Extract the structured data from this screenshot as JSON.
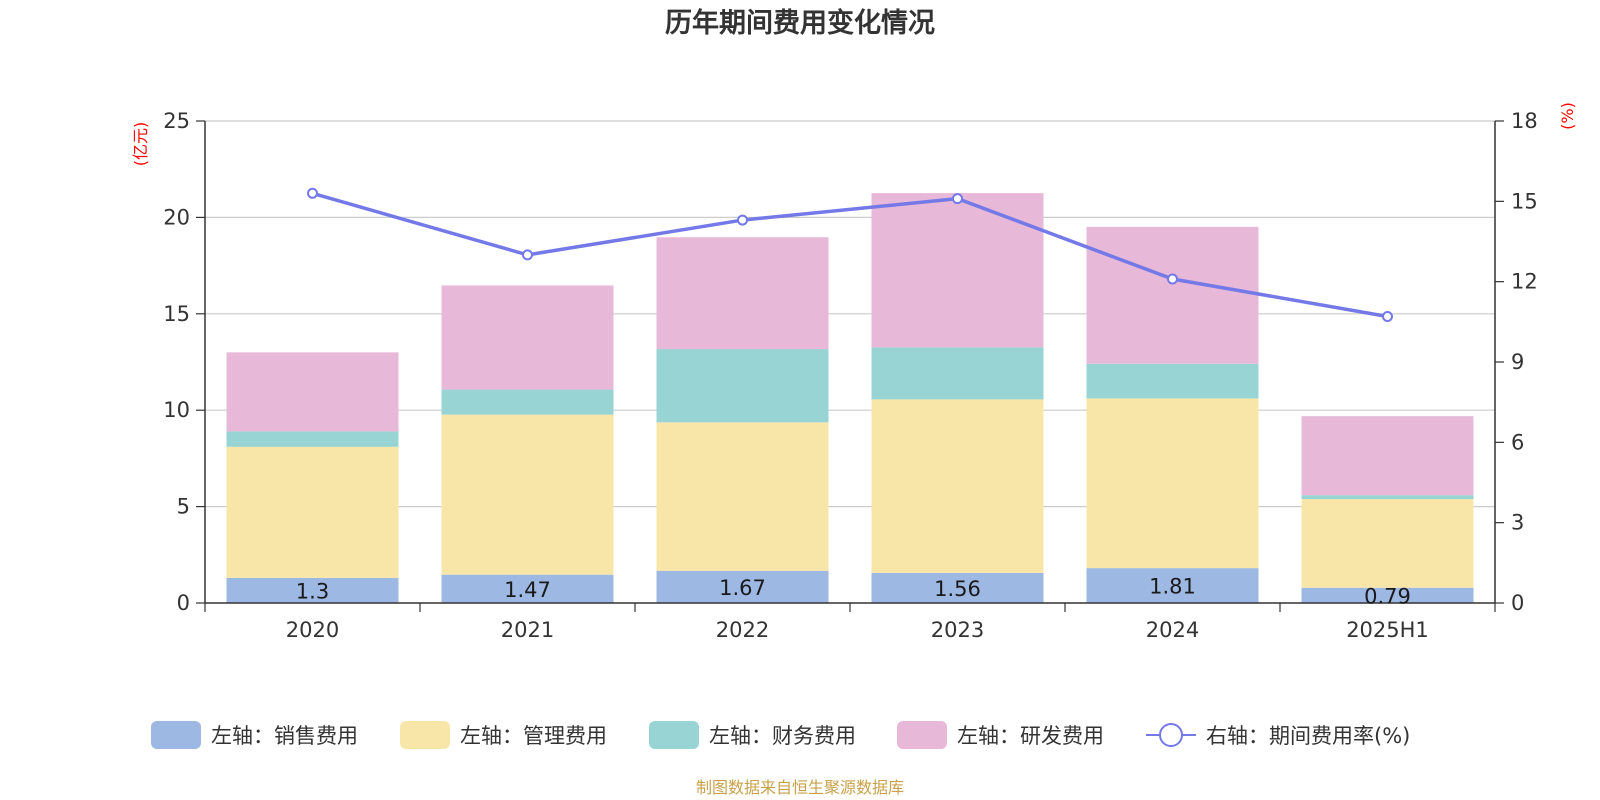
{
  "chart_data": {
    "type": "bar",
    "title": "历年期间费用变化情况",
    "categories": [
      "2020",
      "2021",
      "2022",
      "2023",
      "2024",
      "2025H1"
    ],
    "y_left": {
      "unit": "(亿元)",
      "ylim": [
        0,
        25
      ],
      "ticks": [
        "0",
        "5",
        "10",
        "15",
        "20",
        "25"
      ]
    },
    "y_right": {
      "unit": "(%)",
      "ylim": [
        0,
        18
      ],
      "ticks": [
        "0",
        "3",
        "6",
        "9",
        "12",
        "15",
        "18"
      ]
    },
    "grid": true,
    "legend_position": "bottom",
    "series": [
      {
        "name": "左轴：销售费用",
        "type": "bar",
        "axis": "left",
        "color": "#9db8e2",
        "values": [
          1.3,
          1.47,
          1.67,
          1.56,
          1.81,
          0.79
        ],
        "labels": [
          "1.3",
          "1.47",
          "1.67",
          "1.56",
          "1.81",
          "0.79"
        ]
      },
      {
        "name": "左轴：管理费用",
        "type": "bar",
        "axis": "left",
        "color": "#f8e6a8",
        "values": [
          6.8,
          8.3,
          7.7,
          9.0,
          8.8,
          4.6
        ]
      },
      {
        "name": "左轴：财务费用",
        "type": "bar",
        "axis": "left",
        "color": "#98d4d4",
        "values": [
          0.8,
          1.3,
          3.8,
          2.7,
          1.8,
          0.2
        ]
      },
      {
        "name": "左轴：研发费用",
        "type": "bar",
        "axis": "left",
        "color": "#e7b8d8",
        "values": [
          4.1,
          5.4,
          5.8,
          8.0,
          7.1,
          4.1
        ]
      },
      {
        "name": "右轴：期间费用率(%)",
        "type": "line",
        "axis": "right",
        "color": "#7479e8",
        "values": [
          15.3,
          13.0,
          14.3,
          15.1,
          12.1,
          10.7
        ]
      }
    ],
    "source": "制图数据来自恒生聚源数据库"
  }
}
